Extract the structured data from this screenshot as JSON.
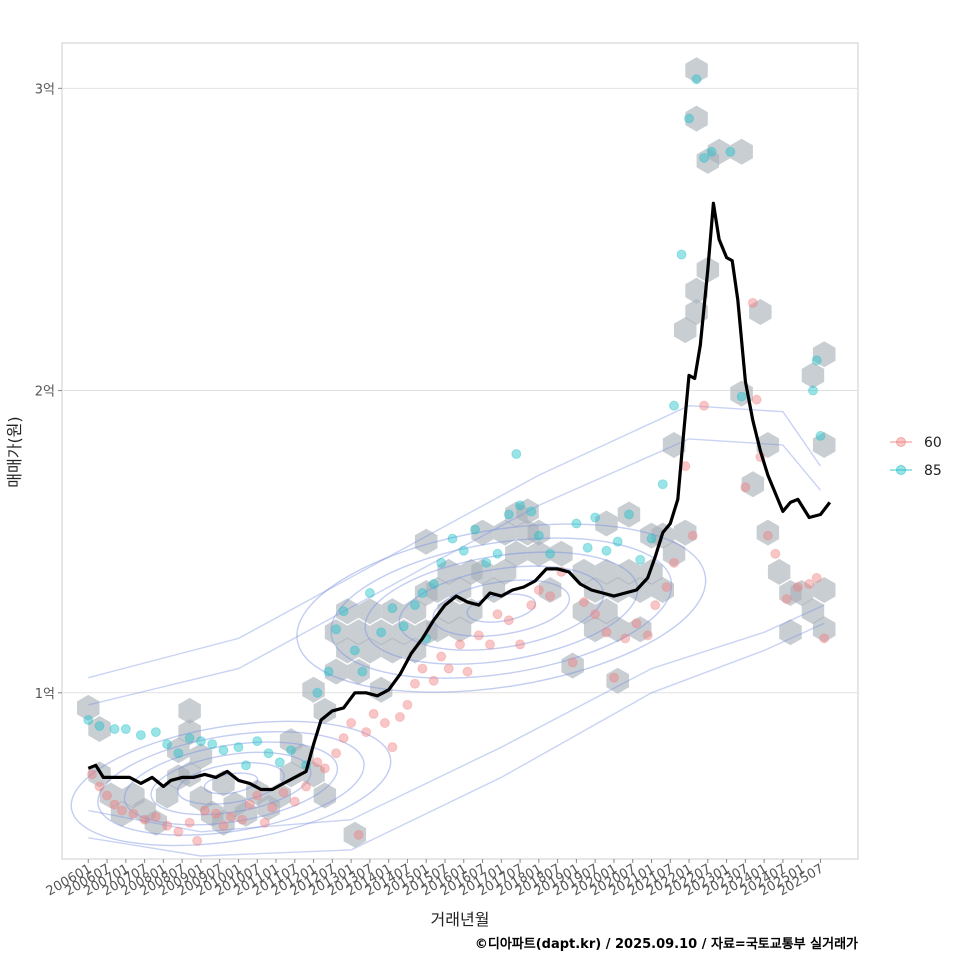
{
  "caption": "©디아파트(dapt.kr) / 2025.09.10 / 자료=국토교통부 실거래가",
  "chart_data": {
    "type": "scatter",
    "xlabel": "거래년월",
    "ylabel": "매매가(원)",
    "ylim": [
      4500,
      31500
    ],
    "y_ticks": [
      {
        "value": 10000,
        "label": "1억"
      },
      {
        "value": 20000,
        "label": "2억"
      },
      {
        "value": 30000,
        "label": "3억"
      }
    ],
    "x_range": [
      2005.3,
      2026.5
    ],
    "x_ticks": [
      "200601",
      "200607",
      "200701",
      "200707",
      "200801",
      "200807",
      "200901",
      "200907",
      "201001",
      "201007",
      "201101",
      "201107",
      "201201",
      "201207",
      "201301",
      "201307",
      "201401",
      "201407",
      "201501",
      "201507",
      "201601",
      "201607",
      "201701",
      "201707",
      "201801",
      "201807",
      "201901",
      "201907",
      "202001",
      "202007",
      "202101",
      "202107",
      "202201",
      "202207",
      "202301",
      "202307",
      "202401",
      "202407",
      "202501",
      "202507"
    ],
    "grid": true,
    "legend_position": "right",
    "colors": {
      "60": "#f08080",
      "85": "#20c0c8",
      "trend": "#000000",
      "hex": "#a8b0b8",
      "contour": "#7890e0"
    },
    "series": [
      {
        "name": "60",
        "color": "#f08080",
        "points": [
          [
            2006.1,
            7300
          ],
          [
            2006.3,
            6900
          ],
          [
            2006.5,
            6600
          ],
          [
            2006.7,
            6300
          ],
          [
            2006.9,
            6100
          ],
          [
            2007.2,
            6000
          ],
          [
            2007.5,
            5800
          ],
          [
            2007.8,
            5900
          ],
          [
            2008.1,
            5600
          ],
          [
            2008.4,
            5400
          ],
          [
            2008.7,
            5700
          ],
          [
            2008.9,
            5100
          ],
          [
            2009.1,
            6100
          ],
          [
            2009.4,
            6000
          ],
          [
            2009.6,
            5600
          ],
          [
            2009.8,
            5900
          ],
          [
            2010.1,
            5800
          ],
          [
            2010.3,
            6300
          ],
          [
            2010.5,
            6600
          ],
          [
            2010.7,
            5700
          ],
          [
            2010.9,
            6200
          ],
          [
            2011.2,
            6700
          ],
          [
            2011.5,
            6400
          ],
          [
            2011.8,
            6900
          ],
          [
            2012.1,
            7700
          ],
          [
            2012.3,
            7500
          ],
          [
            2012.6,
            8000
          ],
          [
            2012.8,
            8500
          ],
          [
            2013.0,
            9000
          ],
          [
            2013.2,
            5300
          ],
          [
            2013.4,
            8700
          ],
          [
            2013.6,
            9300
          ],
          [
            2013.9,
            9000
          ],
          [
            2014.1,
            8200
          ],
          [
            2014.3,
            9200
          ],
          [
            2014.5,
            9600
          ],
          [
            2014.7,
            10300
          ],
          [
            2014.9,
            10800
          ],
          [
            2015.2,
            10400
          ],
          [
            2015.4,
            11200
          ],
          [
            2015.6,
            10800
          ],
          [
            2015.9,
            11600
          ],
          [
            2016.1,
            10700
          ],
          [
            2016.4,
            11900
          ],
          [
            2016.7,
            11600
          ],
          [
            2016.9,
            12600
          ],
          [
            2017.2,
            12400
          ],
          [
            2017.5,
            11600
          ],
          [
            2017.8,
            12900
          ],
          [
            2018.0,
            13400
          ],
          [
            2018.3,
            13200
          ],
          [
            2018.6,
            14000
          ],
          [
            2018.9,
            11000
          ],
          [
            2019.2,
            13000
          ],
          [
            2019.5,
            12600
          ],
          [
            2019.8,
            12000
          ],
          [
            2020.0,
            10500
          ],
          [
            2020.3,
            11800
          ],
          [
            2020.6,
            12300
          ],
          [
            2020.9,
            11900
          ],
          [
            2021.1,
            12900
          ],
          [
            2021.4,
            13500
          ],
          [
            2021.6,
            14300
          ],
          [
            2021.9,
            17500
          ],
          [
            2022.1,
            15200
          ],
          [
            2022.4,
            19500
          ],
          [
            2023.5,
            16800
          ],
          [
            2023.9,
            17800
          ],
          [
            2024.1,
            15200
          ],
          [
            2024.3,
            14600
          ],
          [
            2024.6,
            13100
          ],
          [
            2024.9,
            13500
          ],
          [
            2025.2,
            13600
          ],
          [
            2025.4,
            13800
          ],
          [
            2025.6,
            11800
          ],
          [
            2023.7,
            22900
          ],
          [
            2023.8,
            19700
          ]
        ]
      },
      {
        "name": "85",
        "color": "#20c0c8",
        "points": [
          [
            2006.0,
            9100
          ],
          [
            2006.3,
            8900
          ],
          [
            2006.7,
            8800
          ],
          [
            2007.0,
            8800
          ],
          [
            2007.4,
            8600
          ],
          [
            2007.8,
            8700
          ],
          [
            2008.1,
            8300
          ],
          [
            2008.4,
            8000
          ],
          [
            2008.7,
            8500
          ],
          [
            2009.0,
            8400
          ],
          [
            2009.3,
            8300
          ],
          [
            2009.6,
            8100
          ],
          [
            2010.0,
            8200
          ],
          [
            2010.2,
            7600
          ],
          [
            2010.5,
            8400
          ],
          [
            2010.8,
            8000
          ],
          [
            2011.1,
            7700
          ],
          [
            2011.4,
            8100
          ],
          [
            2011.8,
            7600
          ],
          [
            2012.1,
            10000
          ],
          [
            2012.4,
            10700
          ],
          [
            2012.6,
            12100
          ],
          [
            2012.8,
            12700
          ],
          [
            2013.1,
            11400
          ],
          [
            2013.3,
            10700
          ],
          [
            2013.5,
            13300
          ],
          [
            2013.8,
            12000
          ],
          [
            2014.1,
            12800
          ],
          [
            2014.4,
            12200
          ],
          [
            2014.7,
            12900
          ],
          [
            2014.9,
            13300
          ],
          [
            2015.2,
            13600
          ],
          [
            2015.4,
            14300
          ],
          [
            2015.7,
            15100
          ],
          [
            2016.0,
            14700
          ],
          [
            2016.3,
            15400
          ],
          [
            2016.6,
            14300
          ],
          [
            2016.9,
            14600
          ],
          [
            2017.2,
            15900
          ],
          [
            2017.5,
            16200
          ],
          [
            2017.8,
            16000
          ],
          [
            2018.0,
            15200
          ],
          [
            2018.3,
            14600
          ],
          [
            2019.0,
            15600
          ],
          [
            2019.3,
            14800
          ],
          [
            2019.5,
            15800
          ],
          [
            2019.8,
            14700
          ],
          [
            2020.1,
            15000
          ],
          [
            2020.4,
            15900
          ],
          [
            2020.7,
            14400
          ],
          [
            2021.0,
            15100
          ],
          [
            2021.3,
            16900
          ],
          [
            2021.6,
            19500
          ],
          [
            2021.8,
            24500
          ],
          [
            2022.0,
            29000
          ],
          [
            2022.2,
            30300
          ],
          [
            2022.4,
            27700
          ],
          [
            2022.6,
            27900
          ],
          [
            2023.1,
            27900
          ],
          [
            2023.4,
            19800
          ],
          [
            2025.3,
            20000
          ],
          [
            2025.4,
            21000
          ],
          [
            2025.5,
            18500
          ],
          [
            2015.0,
            11800
          ],
          [
            2017.4,
            17900
          ]
        ]
      }
    ],
    "trend_line": [
      [
        2006.0,
        7500
      ],
      [
        2006.2,
        7600
      ],
      [
        2006.4,
        7200
      ],
      [
        2006.8,
        7200
      ],
      [
        2007.1,
        7200
      ],
      [
        2007.4,
        7000
      ],
      [
        2007.7,
        7200
      ],
      [
        2008.0,
        6900
      ],
      [
        2008.2,
        7100
      ],
      [
        2008.5,
        7200
      ],
      [
        2008.8,
        7200
      ],
      [
        2009.1,
        7300
      ],
      [
        2009.4,
        7200
      ],
      [
        2009.7,
        7400
      ],
      [
        2010.0,
        7100
      ],
      [
        2010.3,
        7000
      ],
      [
        2010.6,
        6800
      ],
      [
        2010.9,
        6800
      ],
      [
        2011.2,
        7000
      ],
      [
        2011.5,
        7200
      ],
      [
        2011.8,
        7400
      ],
      [
        2012.0,
        8300
      ],
      [
        2012.2,
        9100
      ],
      [
        2012.5,
        9400
      ],
      [
        2012.8,
        9500
      ],
      [
        2013.1,
        10000
      ],
      [
        2013.4,
        10000
      ],
      [
        2013.7,
        9900
      ],
      [
        2014.0,
        10100
      ],
      [
        2014.3,
        10600
      ],
      [
        2014.6,
        11300
      ],
      [
        2014.9,
        11800
      ],
      [
        2015.2,
        12400
      ],
      [
        2015.5,
        12900
      ],
      [
        2015.8,
        13200
      ],
      [
        2016.1,
        13000
      ],
      [
        2016.4,
        12900
      ],
      [
        2016.7,
        13300
      ],
      [
        2017.0,
        13200
      ],
      [
        2017.3,
        13400
      ],
      [
        2017.6,
        13500
      ],
      [
        2017.9,
        13700
      ],
      [
        2018.2,
        14100
      ],
      [
        2018.5,
        14100
      ],
      [
        2018.8,
        14000
      ],
      [
        2019.1,
        13600
      ],
      [
        2019.4,
        13400
      ],
      [
        2019.7,
        13300
      ],
      [
        2020.0,
        13200
      ],
      [
        2020.3,
        13300
      ],
      [
        2020.6,
        13400
      ],
      [
        2020.9,
        13800
      ],
      [
        2021.1,
        14500
      ],
      [
        2021.3,
        15300
      ],
      [
        2021.5,
        15600
      ],
      [
        2021.7,
        16400
      ],
      [
        2021.85,
        18500
      ],
      [
        2022.0,
        20500
      ],
      [
        2022.15,
        20400
      ],
      [
        2022.3,
        21500
      ],
      [
        2022.5,
        24000
      ],
      [
        2022.65,
        26200
      ],
      [
        2022.8,
        25000
      ],
      [
        2023.0,
        24400
      ],
      [
        2023.15,
        24300
      ],
      [
        2023.3,
        23000
      ],
      [
        2023.5,
        20300
      ],
      [
        2023.7,
        19000
      ],
      [
        2023.9,
        18000
      ],
      [
        2024.1,
        17200
      ],
      [
        2024.3,
        16600
      ],
      [
        2024.5,
        16000
      ],
      [
        2024.7,
        16300
      ],
      [
        2024.9,
        16400
      ],
      [
        2025.2,
        15800
      ],
      [
        2025.5,
        15900
      ],
      [
        2025.75,
        16300
      ]
    ],
    "hex_bins": [
      [
        2006.0,
        9500
      ],
      [
        2006.3,
        8800
      ],
      [
        2006.3,
        7300
      ],
      [
        2006.6,
        6600
      ],
      [
        2006.9,
        6000
      ],
      [
        2007.2,
        6600
      ],
      [
        2007.5,
        6100
      ],
      [
        2007.8,
        5700
      ],
      [
        2008.1,
        6600
      ],
      [
        2008.4,
        7200
      ],
      [
        2008.4,
        8100
      ],
      [
        2008.7,
        9400
      ],
      [
        2008.7,
        8700
      ],
      [
        2008.7,
        7300
      ],
      [
        2009.0,
        7900
      ],
      [
        2009.0,
        6500
      ],
      [
        2009.3,
        6000
      ],
      [
        2009.6,
        5700
      ],
      [
        2009.6,
        7000
      ],
      [
        2009.9,
        6300
      ],
      [
        2010.2,
        6000
      ],
      [
        2010.5,
        6700
      ],
      [
        2010.8,
        6200
      ],
      [
        2011.1,
        6600
      ],
      [
        2011.4,
        7300
      ],
      [
        2011.7,
        7900
      ],
      [
        2011.4,
        8400
      ],
      [
        2012.0,
        10100
      ],
      [
        2012.3,
        9400
      ],
      [
        2012.6,
        10700
      ],
      [
        2012.6,
        12000
      ],
      [
        2012.9,
        12700
      ],
      [
        2012.9,
        11400
      ],
      [
        2013.2,
        12000
      ],
      [
        2013.2,
        10700
      ],
      [
        2013.5,
        12700
      ],
      [
        2013.5,
        11400
      ],
      [
        2013.8,
        10100
      ],
      [
        2013.8,
        12000
      ],
      [
        2014.1,
        11400
      ],
      [
        2014.1,
        12700
      ],
      [
        2014.4,
        12000
      ],
      [
        2014.7,
        12700
      ],
      [
        2014.7,
        11400
      ],
      [
        2015.0,
        12000
      ],
      [
        2015.0,
        13300
      ],
      [
        2015.0,
        15000
      ],
      [
        2015.3,
        13400
      ],
      [
        2015.3,
        12100
      ],
      [
        2015.6,
        14000
      ],
      [
        2015.6,
        12700
      ],
      [
        2015.9,
        13400
      ],
      [
        2015.9,
        12100
      ],
      [
        2016.2,
        14000
      ],
      [
        2016.2,
        12700
      ],
      [
        2016.5,
        15300
      ],
      [
        2016.5,
        14000
      ],
      [
        2016.8,
        13400
      ],
      [
        2017.1,
        14000
      ],
      [
        2017.1,
        15300
      ],
      [
        2017.4,
        15900
      ],
      [
        2017.4,
        14600
      ],
      [
        2017.7,
        15300
      ],
      [
        2017.7,
        16000
      ],
      [
        2018.0,
        14600
      ],
      [
        2018.0,
        15300
      ],
      [
        2018.3,
        13400
      ],
      [
        2018.6,
        14600
      ],
      [
        2018.9,
        10900
      ],
      [
        2019.2,
        14000
      ],
      [
        2019.2,
        12700
      ],
      [
        2019.5,
        13400
      ],
      [
        2019.5,
        12100
      ],
      [
        2019.8,
        14000
      ],
      [
        2019.8,
        12700
      ],
      [
        2019.8,
        15600
      ],
      [
        2020.1,
        13400
      ],
      [
        2020.1,
        12100
      ],
      [
        2020.1,
        10400
      ],
      [
        2020.4,
        14000
      ],
      [
        2020.4,
        15900
      ],
      [
        2020.7,
        13400
      ],
      [
        2020.7,
        12100
      ],
      [
        2021.0,
        14000
      ],
      [
        2021.0,
        15200
      ],
      [
        2021.3,
        13400
      ],
      [
        2021.3,
        15200
      ],
      [
        2021.6,
        18200
      ],
      [
        2021.6,
        14600
      ],
      [
        2021.9,
        15300
      ],
      [
        2021.9,
        22000
      ],
      [
        2022.2,
        22600
      ],
      [
        2022.2,
        23300
      ],
      [
        2022.5,
        24000
      ],
      [
        2022.2,
        30600
      ],
      [
        2022.2,
        29000
      ],
      [
        2022.5,
        27600
      ],
      [
        2022.8,
        27900
      ],
      [
        2023.4,
        27900
      ],
      [
        2023.4,
        19900
      ],
      [
        2023.7,
        16900
      ],
      [
        2023.9,
        22600
      ],
      [
        2024.1,
        18200
      ],
      [
        2024.1,
        15300
      ],
      [
        2024.4,
        14000
      ],
      [
        2024.7,
        13300
      ],
      [
        2024.7,
        12000
      ],
      [
        2025.0,
        13300
      ],
      [
        2025.3,
        20500
      ],
      [
        2025.3,
        12700
      ],
      [
        2025.6,
        21200
      ],
      [
        2025.6,
        18200
      ],
      [
        2025.6,
        13400
      ],
      [
        2025.6,
        12100
      ],
      [
        2013.1,
        5300
      ],
      [
        2012.0,
        7300
      ],
      [
        2012.3,
        6600
      ]
    ]
  }
}
